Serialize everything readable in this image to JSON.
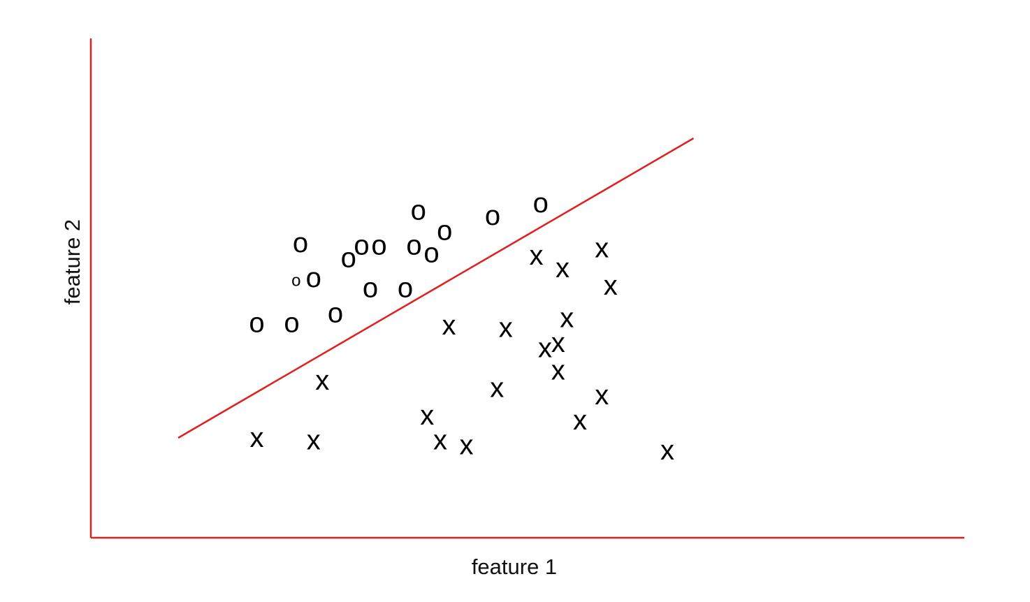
{
  "chart_data": {
    "type": "scatter",
    "title": "",
    "xlabel": "feature 1",
    "ylabel": "feature 2",
    "xlim": [
      0,
      100
    ],
    "ylim": [
      0,
      100
    ],
    "grid": false,
    "legend": "none",
    "colors": {
      "axis": "#e02020",
      "boundary": "#e02020",
      "markers": "#000000"
    },
    "decision_boundary": {
      "x": [
        10,
        69
      ],
      "y": [
        20,
        80
      ]
    },
    "series": [
      {
        "glyph": "o",
        "points": [
          {
            "x": 19,
            "y": 43
          },
          {
            "x": 23,
            "y": 43
          },
          {
            "x": 28,
            "y": 45
          },
          {
            "x": 23.5,
            "y": 51.5,
            "small": true
          },
          {
            "x": 25.5,
            "y": 52
          },
          {
            "x": 24,
            "y": 59
          },
          {
            "x": 29.5,
            "y": 56
          },
          {
            "x": 31,
            "y": 58.5
          },
          {
            "x": 33,
            "y": 58.5
          },
          {
            "x": 32,
            "y": 50
          },
          {
            "x": 36,
            "y": 50
          },
          {
            "x": 37,
            "y": 58.5
          },
          {
            "x": 39,
            "y": 57
          },
          {
            "x": 37.5,
            "y": 65.5
          },
          {
            "x": 40.5,
            "y": 61.5
          },
          {
            "x": 46,
            "y": 64.5
          },
          {
            "x": 51.5,
            "y": 67
          }
        ]
      },
      {
        "glyph": "x",
        "points": [
          {
            "x": 19,
            "y": 20
          },
          {
            "x": 25.5,
            "y": 19.5
          },
          {
            "x": 26.5,
            "y": 31.5
          },
          {
            "x": 38.5,
            "y": 24.5
          },
          {
            "x": 40,
            "y": 19.5
          },
          {
            "x": 43,
            "y": 18.5
          },
          {
            "x": 41,
            "y": 42.5
          },
          {
            "x": 47.5,
            "y": 42
          },
          {
            "x": 46.5,
            "y": 30
          },
          {
            "x": 51,
            "y": 56.5
          },
          {
            "x": 54,
            "y": 54
          },
          {
            "x": 58.5,
            "y": 58
          },
          {
            "x": 59.5,
            "y": 50.5
          },
          {
            "x": 54.5,
            "y": 44
          },
          {
            "x": 52,
            "y": 38
          },
          {
            "x": 53.5,
            "y": 39
          },
          {
            "x": 53.5,
            "y": 33.5
          },
          {
            "x": 58.5,
            "y": 28.5
          },
          {
            "x": 56,
            "y": 23.5
          },
          {
            "x": 66,
            "y": 17.5
          }
        ]
      }
    ]
  }
}
